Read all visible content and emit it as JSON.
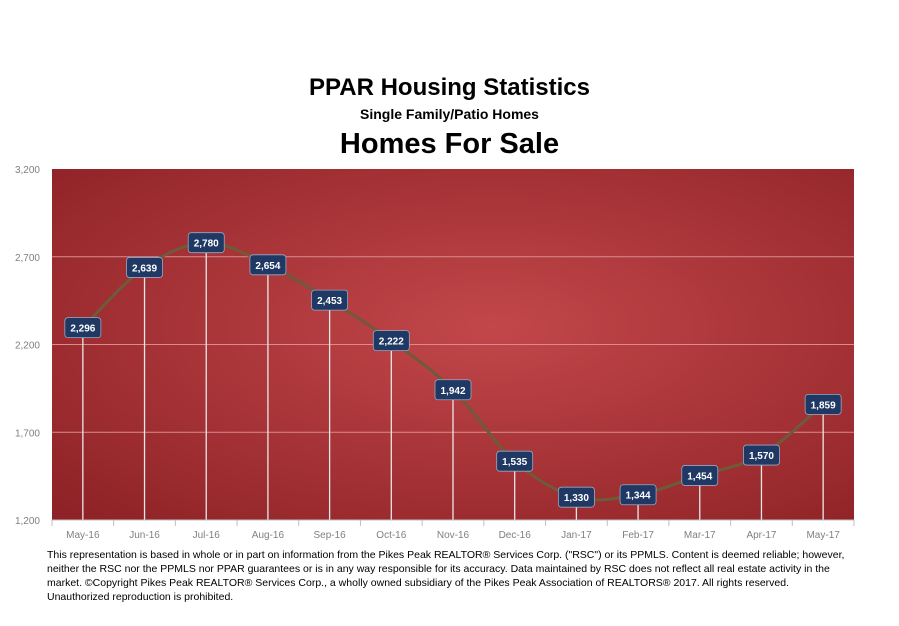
{
  "header": {
    "title": "PPAR Housing Statistics",
    "subtitle": "Single Family/Patio Homes"
  },
  "chart_data": {
    "type": "line",
    "title": "Homes For Sale",
    "categories": [
      "May-16",
      "Jun-16",
      "Jul-16",
      "Aug-16",
      "Sep-16",
      "Oct-16",
      "Nov-16",
      "Dec-16",
      "Jan-17",
      "Feb-17",
      "Mar-17",
      "Apr-17",
      "May-17"
    ],
    "series": [
      {
        "values": [
          2296,
          2639,
          2780,
          2654,
          2453,
          2222,
          1942,
          1535,
          1330,
          1344,
          1454,
          1570,
          1859
        ]
      }
    ],
    "data_labels": [
      "2,296",
      "2,639",
      "2,780",
      "2,654",
      "2,453",
      "2,222",
      "1,942",
      "1,535",
      "1,330",
      "1,344",
      "1,454",
      "1,570",
      "1,859"
    ],
    "ylim": [
      1200,
      3200
    ],
    "yticks": [
      1200,
      1700,
      2200,
      2700,
      3200
    ],
    "ytick_labels": [
      "1,200",
      "1,700",
      "2,200",
      "2,700",
      "3,200"
    ],
    "grid": true,
    "legend": "none",
    "colors": {
      "plot_bg_center": "#c2474a",
      "plot_bg_edge": "#8e2226",
      "line": "#6f5a3a",
      "label_bg": "#1f3864",
      "drop_lines": "#e8e8e8"
    }
  },
  "footer": {
    "disclaimer": "This representation is based in whole or in part on information from the Pikes Peak REALTOR® Services Corp. (\"RSC\") or its PPMLS. Content is deemed reliable; however, neither the RSC nor the PPMLS nor PPAR guarantees or is in any way responsible for its accuracy. Data maintained by RSC does not reflect all real estate activity in the market. ©Copyright Pikes Peak REALTOR® Services Corp., a wholly owned subsidiary of the Pikes Peak Association of REALTORS® 2017. All rights reserved. Unauthorized reproduction is prohibited."
  }
}
